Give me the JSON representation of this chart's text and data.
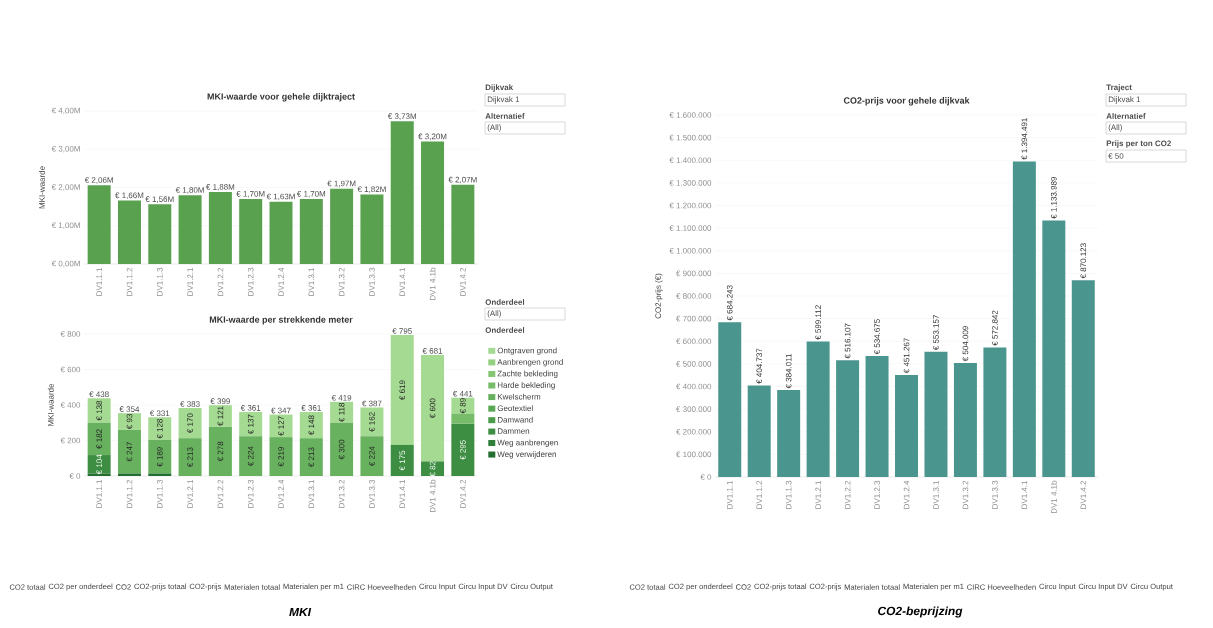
{
  "chart_data": [
    {
      "type": "bar",
      "title": "MKI-waarde voor gehele dijktraject",
      "ylabel": "MKI-waarde",
      "categories": [
        "DV1.1.1",
        "DV1.1.2",
        "DV1.1.3",
        "DV1.2.1",
        "DV1.2.2",
        "DV1.2.3",
        "DV1.2.4",
        "DV1.3.1",
        "DV1.3.2",
        "DV1.3.3",
        "DV1.4.1",
        "DV1 4.1b",
        "DV1.4.2"
      ],
      "values": [
        2.06,
        1.66,
        1.56,
        1.8,
        1.88,
        1.7,
        1.63,
        1.7,
        1.97,
        1.82,
        3.73,
        3.2,
        2.07
      ],
      "value_labels": [
        "€ 2,06M",
        "€ 1,66M",
        "€ 1,56M",
        "€ 1,80M",
        "€ 1,88M",
        "€ 1,70M",
        "€ 1,63M",
        "€ 1,70M",
        "€ 1,97M",
        "€ 1,82M",
        "€ 3,73M",
        "€ 3,20M",
        "€ 2,07M"
      ],
      "color": "#59a14f",
      "ylim": [
        0,
        4
      ],
      "yticks": [
        {
          "value": 0,
          "label": "€ 0,00M"
        },
        {
          "value": 1,
          "label": "€ 1,00M"
        },
        {
          "value": 2,
          "label": "€ 2,00M"
        },
        {
          "value": 3,
          "label": "€ 3,00M"
        },
        {
          "value": 4,
          "label": "€ 4,00M"
        }
      ],
      "grid": "y",
      "annotations": [
        "Dijkvak",
        "Dijkvak 1",
        "Alternatief",
        "(All)",
        "CO2 totaal",
        "CO2 per onderdeel",
        "CO2",
        "CO2-prijs totaal",
        "CO2-prijs",
        "Materialen totaal",
        "Materialen per m1",
        "CIRC Hoeveelheden",
        "Circu Input",
        "Circu Input DV",
        "Circu Output",
        "MKI"
      ]
    },
    {
      "type": "bar",
      "stacked": true,
      "title": "MKI-waarde per strekkende meter",
      "ylabel": "MKI-waarde",
      "categories": [
        "DV1.1.1",
        "DV1.1.2",
        "DV1.1.3",
        "DV1.2.1",
        "DV1.2.2",
        "DV1.2.3",
        "DV1.2.4",
        "DV1.3.1",
        "DV1.3.2",
        "DV1.3.3",
        "DV1.4.1",
        "DV1 4.1b",
        "DV1.4.2"
      ],
      "series": [
        {
          "name": "Weg verwijderen",
          "color": "#226f31",
          "values": [
            14,
            14,
            14,
            null,
            null,
            null,
            null,
            null,
            null,
            null,
            null,
            null,
            null
          ]
        },
        {
          "name": "Weg aanbrengen",
          "color": "#2f7f39",
          "values": [
            null,
            null,
            null,
            null,
            null,
            null,
            null,
            null,
            null,
            null,
            null,
            null,
            null
          ]
        },
        {
          "name": "Dammen",
          "color": "#3d8e42",
          "values": [
            104,
            null,
            null,
            null,
            null,
            null,
            null,
            null,
            null,
            null,
            175,
            82,
            295
          ],
          "value_labels": [
            "€ 104",
            null,
            null,
            null,
            null,
            null,
            null,
            null,
            null,
            null,
            "€ 175",
            "€ 82",
            "€ 295"
          ]
        },
        {
          "name": "Damwand",
          "color": "#4c9c4b",
          "values": [
            null,
            null,
            null,
            null,
            null,
            null,
            null,
            null,
            null,
            null,
            null,
            null,
            null
          ]
        },
        {
          "name": "Geotextiel",
          "color": "#5aa855",
          "values": [
            null,
            null,
            null,
            null,
            null,
            null,
            null,
            null,
            null,
            null,
            null,
            null,
            null
          ]
        },
        {
          "name": "Kwelscherm",
          "color": "#68b25f",
          "values": [
            182,
            247,
            189,
            213,
            278,
            224,
            219,
            213,
            300,
            224,
            null,
            null,
            null
          ],
          "value_labels": [
            "€ 182",
            "€ 247",
            "€ 189",
            "€ 213",
            "€ 278",
            "€ 224",
            "€ 219",
            "€ 213",
            "€ 300",
            "€ 224",
            null,
            null,
            null
          ]
        },
        {
          "name": "Harde bekleding",
          "color": "#76bc69",
          "values": [
            null,
            null,
            null,
            null,
            null,
            null,
            null,
            null,
            null,
            null,
            null,
            null,
            57
          ]
        },
        {
          "name": "Zachte bekleding",
          "color": "#85c674",
          "values": [
            null,
            null,
            null,
            null,
            null,
            null,
            null,
            null,
            null,
            null,
            null,
            null,
            null
          ]
        },
        {
          "name": "Aanbrengen grond",
          "color": "#94d07f",
          "values": [
            null,
            null,
            null,
            null,
            null,
            null,
            null,
            null,
            null,
            null,
            null,
            null,
            null
          ]
        },
        {
          "name": "Ontgraven grond",
          "color": "#a5da92",
          "values": [
            138,
            93,
            128,
            170,
            121,
            137,
            127,
            148,
            118,
            162,
            619,
            600,
            89
          ],
          "value_labels": [
            "€ 138",
            "€ 93",
            "€ 128",
            "€ 170",
            "€ 121",
            "€ 137",
            "€ 127",
            "€ 148",
            "€ 118",
            "€ 162",
            "€ 619",
            "€ 600",
            "€ 89"
          ]
        }
      ],
      "totals": [
        "€ 438",
        "€ 354",
        "€ 331",
        "€ 383",
        "€ 399",
        "€ 361",
        "€ 347",
        "€ 361",
        "€ 419",
        "€ 387",
        "€ 795",
        "€ 681",
        "€ 441"
      ],
      "ylim": [
        0,
        800
      ],
      "yticks": [
        {
          "value": 0,
          "label": "€ 0"
        },
        {
          "value": 200,
          "label": "€ 200"
        },
        {
          "value": 400,
          "label": "€ 400"
        },
        {
          "value": 600,
          "label": "€ 600"
        },
        {
          "value": 800,
          "label": "€ 800"
        }
      ],
      "grid": "y",
      "legend": "right",
      "legend_title": "Onderdeel",
      "annotations": [
        "Onderdeel",
        "(All)"
      ]
    },
    {
      "type": "bar",
      "title": "CO2-prijs voor gehele dijkvak",
      "ylabel": "CO2-prijs (€)",
      "categories": [
        "DV1.1.1",
        "DV1.1.2",
        "DV1.1.3",
        "DV1.2.1",
        "DV1.2.2",
        "DV1.2.3",
        "DV1.2.4",
        "DV1.3.1",
        "DV1.3.2",
        "DV1.3.3",
        "DV1.4.1",
        "DV1 4.1b",
        "DV1.4.2"
      ],
      "values": [
        684243,
        404737,
        384011,
        599112,
        516107,
        534675,
        451267,
        553157,
        504009,
        572842,
        1394491,
        1133989,
        870123
      ],
      "value_labels": [
        "€ 684.243",
        "€ 404.737",
        "€ 384.011",
        "€ 599.112",
        "€ 516.107",
        "€ 534.675",
        "€ 451.267",
        "€ 553.157",
        "€ 504.009",
        "€ 572.842",
        "€ 1.394.491",
        "€ 1.133.989",
        "€ 870.123"
      ],
      "color": "#4b958f",
      "ylim": [
        0,
        1600000
      ],
      "yticks": [
        {
          "value": 0,
          "label": "€ 0"
        },
        {
          "value": 100000,
          "label": "€ 100.000"
        },
        {
          "value": 200000,
          "label": "€ 200.000"
        },
        {
          "value": 300000,
          "label": "€ 300.000"
        },
        {
          "value": 400000,
          "label": "€ 400.000"
        },
        {
          "value": 500000,
          "label": "€ 500.000"
        },
        {
          "value": 600000,
          "label": "€ 600.000"
        },
        {
          "value": 700000,
          "label": "€ 700.000"
        },
        {
          "value": 800000,
          "label": "€ 800.000"
        },
        {
          "value": 900000,
          "label": "€ 900.000"
        },
        {
          "value": 1000000,
          "label": "€ 1.000.000"
        },
        {
          "value": 1100000,
          "label": "€ 1.100.000"
        },
        {
          "value": 1200000,
          "label": "€ 1.200.000"
        },
        {
          "value": 1300000,
          "label": "€ 1.300.000"
        },
        {
          "value": 1400000,
          "label": "€ 1.400.000"
        },
        {
          "value": 1500000,
          "label": "€ 1.500.000"
        },
        {
          "value": 1600000,
          "label": "€ 1.600.000"
        }
      ],
      "grid": "y",
      "annotations": [
        "Traject",
        "Dijkvak 1",
        "Alternatief",
        "(All)",
        "Prijs per ton CO2",
        "€ 50",
        "CO2 totaal",
        "CO2 per onderdeel",
        "CO2",
        "CO2-prijs totaal",
        "CO2-prijs",
        "Materialen totaal",
        "Materialen per m1",
        "CIRC Hoeveelheden",
        "Circu Input",
        "Circu Input DV",
        "Circu Output",
        "CO2-beprijzing"
      ]
    }
  ]
}
